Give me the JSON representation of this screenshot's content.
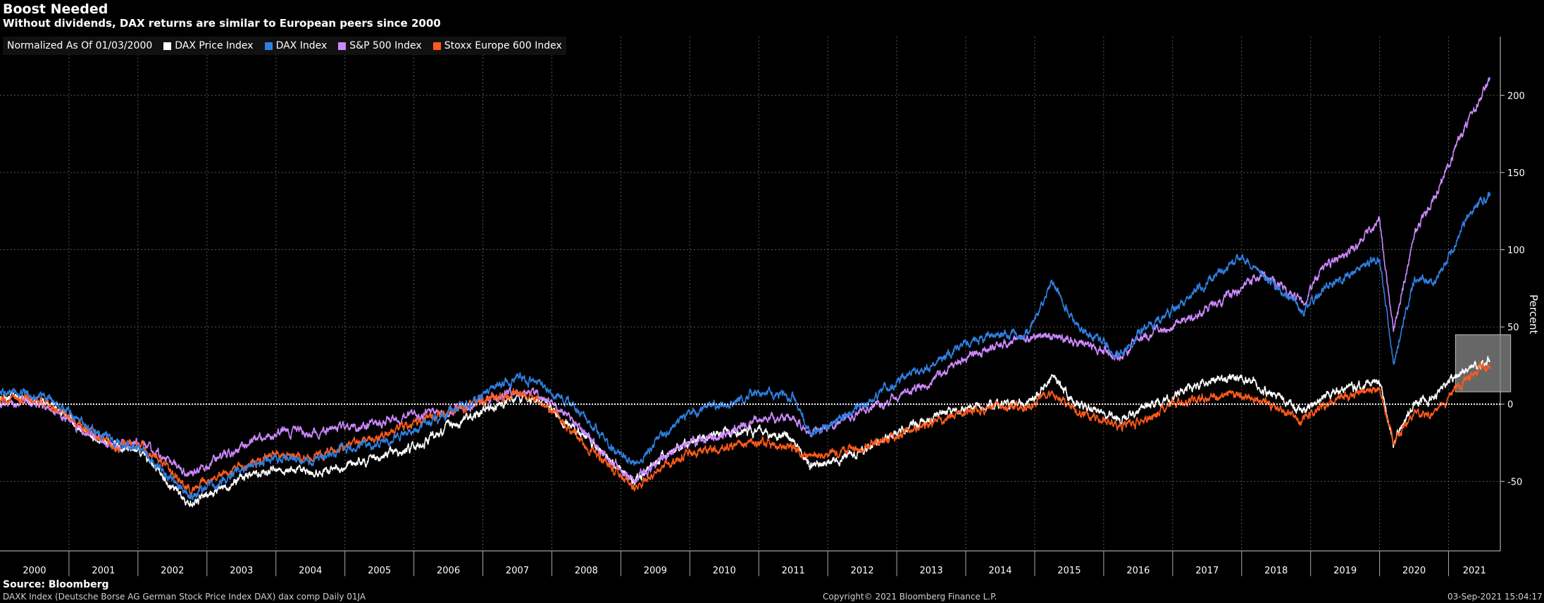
{
  "header": {
    "title": "Boost Needed",
    "subtitle": "Without dividends, DAX returns are similar to European peers since 2000"
  },
  "legend": {
    "prefix": "Normalized As Of 01/03/2000",
    "items": [
      {
        "label": "DAX Price Index",
        "color": "#ffffff"
      },
      {
        "label": "DAX Index",
        "color": "#2f7fe0"
      },
      {
        "label": "S&P 500 Index",
        "color": "#cc88ff"
      },
      {
        "label": "Stoxx Europe 600 Index",
        "color": "#ff5a1a"
      }
    ]
  },
  "footer": {
    "source": "Source: Bloomberg",
    "left": "DAXK Index (Deutsche Borse AG German Stock Price Index DAX) dax comp  Daily 01JA",
    "center": "Copyright© 2021 Bloomberg Finance L.P.",
    "right": "03-Sep-2021 15:04:17"
  },
  "chart_data": {
    "type": "line",
    "ylabel": "Percent",
    "ylim": [
      -95,
      238
    ],
    "xlim": [
      2000.0,
      2021.75
    ],
    "yticks": [
      -50,
      0,
      50,
      100,
      150,
      200
    ],
    "xticks": [
      "2000",
      "2001",
      "2002",
      "2003",
      "2004",
      "2005",
      "2006",
      "2007",
      "2008",
      "2009",
      "2010",
      "2011",
      "2012",
      "2013",
      "2014",
      "2015",
      "2016",
      "2017",
      "2018",
      "2019",
      "2020",
      "2021"
    ],
    "grid": true,
    "legend_position": "top-left",
    "series": [
      {
        "name": "DAX Price Index",
        "color": "#ffffff",
        "points": [
          [
            2000.0,
            5
          ],
          [
            2000.4,
            4
          ],
          [
            2000.8,
            -2
          ],
          [
            2001.3,
            -20
          ],
          [
            2001.7,
            -28
          ],
          [
            2002.0,
            -30
          ],
          [
            2002.4,
            -48
          ],
          [
            2002.75,
            -65
          ],
          [
            2003.2,
            -55
          ],
          [
            2003.6,
            -45
          ],
          [
            2004.0,
            -42
          ],
          [
            2004.5,
            -45
          ],
          [
            2005.0,
            -40
          ],
          [
            2005.5,
            -35
          ],
          [
            2006.0,
            -28
          ],
          [
            2006.5,
            -15
          ],
          [
            2007.0,
            -5
          ],
          [
            2007.5,
            5
          ],
          [
            2007.9,
            0
          ],
          [
            2008.3,
            -15
          ],
          [
            2008.7,
            -30
          ],
          [
            2009.2,
            -50
          ],
          [
            2009.6,
            -35
          ],
          [
            2010.0,
            -25
          ],
          [
            2010.5,
            -18
          ],
          [
            2011.0,
            -18
          ],
          [
            2011.5,
            -22
          ],
          [
            2011.75,
            -40
          ],
          [
            2012.0,
            -38
          ],
          [
            2012.5,
            -30
          ],
          [
            2013.0,
            -18
          ],
          [
            2013.5,
            -10
          ],
          [
            2014.0,
            -2
          ],
          [
            2014.5,
            0
          ],
          [
            2014.9,
            0
          ],
          [
            2015.25,
            18
          ],
          [
            2015.6,
            0
          ],
          [
            2016.0,
            -5
          ],
          [
            2016.2,
            -10
          ],
          [
            2016.5,
            -5
          ],
          [
            2017.0,
            5
          ],
          [
            2017.5,
            15
          ],
          [
            2018.0,
            18
          ],
          [
            2018.3,
            10
          ],
          [
            2018.9,
            -5
          ],
          [
            2019.2,
            5
          ],
          [
            2019.6,
            10
          ],
          [
            2020.0,
            15
          ],
          [
            2020.2,
            -25
          ],
          [
            2020.5,
            0
          ],
          [
            2020.8,
            5
          ],
          [
            2021.0,
            15
          ],
          [
            2021.3,
            22
          ],
          [
            2021.6,
            28
          ]
        ]
      },
      {
        "name": "DAX Index",
        "color": "#2f7fe0",
        "points": [
          [
            2000.0,
            8
          ],
          [
            2000.4,
            7
          ],
          [
            2000.8,
            2
          ],
          [
            2001.3,
            -15
          ],
          [
            2001.7,
            -25
          ],
          [
            2002.0,
            -28
          ],
          [
            2002.4,
            -45
          ],
          [
            2002.75,
            -60
          ],
          [
            2003.2,
            -50
          ],
          [
            2003.6,
            -40
          ],
          [
            2004.0,
            -35
          ],
          [
            2004.5,
            -38
          ],
          [
            2005.0,
            -30
          ],
          [
            2005.5,
            -25
          ],
          [
            2006.0,
            -18
          ],
          [
            2006.5,
            -5
          ],
          [
            2007.0,
            5
          ],
          [
            2007.5,
            18
          ],
          [
            2007.9,
            10
          ],
          [
            2008.3,
            0
          ],
          [
            2008.7,
            -20
          ],
          [
            2009.2,
            -40
          ],
          [
            2009.6,
            -20
          ],
          [
            2010.0,
            -5
          ],
          [
            2010.5,
            0
          ],
          [
            2011.0,
            8
          ],
          [
            2011.5,
            5
          ],
          [
            2011.75,
            -20
          ],
          [
            2012.0,
            -15
          ],
          [
            2012.5,
            0
          ],
          [
            2013.0,
            15
          ],
          [
            2013.5,
            25
          ],
          [
            2014.0,
            40
          ],
          [
            2014.5,
            45
          ],
          [
            2014.9,
            45
          ],
          [
            2015.25,
            80
          ],
          [
            2015.6,
            50
          ],
          [
            2016.0,
            40
          ],
          [
            2016.2,
            30
          ],
          [
            2016.5,
            45
          ],
          [
            2017.0,
            60
          ],
          [
            2017.5,
            80
          ],
          [
            2018.0,
            95
          ],
          [
            2018.3,
            85
          ],
          [
            2018.9,
            60
          ],
          [
            2019.2,
            75
          ],
          [
            2019.6,
            85
          ],
          [
            2020.0,
            95
          ],
          [
            2020.2,
            25
          ],
          [
            2020.5,
            80
          ],
          [
            2020.8,
            80
          ],
          [
            2021.0,
            95
          ],
          [
            2021.3,
            125
          ],
          [
            2021.6,
            135
          ]
        ]
      },
      {
        "name": "S&P 500 Index",
        "color": "#cc88ff",
        "points": [
          [
            2000.0,
            0
          ],
          [
            2000.4,
            2
          ],
          [
            2000.8,
            -5
          ],
          [
            2001.3,
            -20
          ],
          [
            2001.7,
            -28
          ],
          [
            2002.0,
            -25
          ],
          [
            2002.4,
            -35
          ],
          [
            2002.75,
            -45
          ],
          [
            2003.2,
            -35
          ],
          [
            2003.6,
            -25
          ],
          [
            2004.0,
            -18
          ],
          [
            2004.5,
            -18
          ],
          [
            2005.0,
            -15
          ],
          [
            2005.5,
            -12
          ],
          [
            2006.0,
            -8
          ],
          [
            2006.5,
            -5
          ],
          [
            2007.0,
            2
          ],
          [
            2007.5,
            8
          ],
          [
            2007.9,
            5
          ],
          [
            2008.3,
            -10
          ],
          [
            2008.7,
            -30
          ],
          [
            2009.2,
            -50
          ],
          [
            2009.6,
            -35
          ],
          [
            2010.0,
            -25
          ],
          [
            2010.5,
            -20
          ],
          [
            2011.0,
            -10
          ],
          [
            2011.5,
            -8
          ],
          [
            2011.75,
            -20
          ],
          [
            2012.0,
            -15
          ],
          [
            2012.5,
            -5
          ],
          [
            2013.0,
            5
          ],
          [
            2013.5,
            15
          ],
          [
            2014.0,
            30
          ],
          [
            2014.5,
            38
          ],
          [
            2014.9,
            42
          ],
          [
            2015.25,
            45
          ],
          [
            2015.6,
            40
          ],
          [
            2016.0,
            35
          ],
          [
            2016.2,
            30
          ],
          [
            2016.5,
            42
          ],
          [
            2017.0,
            50
          ],
          [
            2017.5,
            60
          ],
          [
            2018.0,
            75
          ],
          [
            2018.3,
            85
          ],
          [
            2018.9,
            65
          ],
          [
            2019.2,
            90
          ],
          [
            2019.6,
            100
          ],
          [
            2020.0,
            120
          ],
          [
            2020.2,
            45
          ],
          [
            2020.5,
            110
          ],
          [
            2020.8,
            135
          ],
          [
            2021.0,
            155
          ],
          [
            2021.3,
            185
          ],
          [
            2021.6,
            210
          ]
        ]
      },
      {
        "name": "Stoxx Europe 600 Index",
        "color": "#ff5a1a",
        "points": [
          [
            2000.0,
            2
          ],
          [
            2000.4,
            3
          ],
          [
            2000.8,
            -3
          ],
          [
            2001.3,
            -18
          ],
          [
            2001.7,
            -28
          ],
          [
            2002.0,
            -25
          ],
          [
            2002.4,
            -40
          ],
          [
            2002.75,
            -55
          ],
          [
            2003.2,
            -45
          ],
          [
            2003.6,
            -38
          ],
          [
            2004.0,
            -32
          ],
          [
            2004.5,
            -35
          ],
          [
            2005.0,
            -28
          ],
          [
            2005.5,
            -22
          ],
          [
            2006.0,
            -12
          ],
          [
            2006.5,
            -5
          ],
          [
            2007.0,
            2
          ],
          [
            2007.5,
            8
          ],
          [
            2007.9,
            0
          ],
          [
            2008.3,
            -18
          ],
          [
            2008.7,
            -35
          ],
          [
            2009.2,
            -55
          ],
          [
            2009.6,
            -40
          ],
          [
            2010.0,
            -32
          ],
          [
            2010.5,
            -28
          ],
          [
            2011.0,
            -25
          ],
          [
            2011.5,
            -28
          ],
          [
            2011.75,
            -35
          ],
          [
            2012.0,
            -32
          ],
          [
            2012.5,
            -28
          ],
          [
            2013.0,
            -20
          ],
          [
            2013.5,
            -12
          ],
          [
            2014.0,
            -5
          ],
          [
            2014.5,
            -2
          ],
          [
            2014.9,
            -3
          ],
          [
            2015.25,
            8
          ],
          [
            2015.6,
            -5
          ],
          [
            2016.0,
            -10
          ],
          [
            2016.2,
            -15
          ],
          [
            2016.5,
            -12
          ],
          [
            2017.0,
            0
          ],
          [
            2017.5,
            5
          ],
          [
            2018.0,
            5
          ],
          [
            2018.3,
            2
          ],
          [
            2018.9,
            -10
          ],
          [
            2019.2,
            0
          ],
          [
            2019.6,
            5
          ],
          [
            2020.0,
            12
          ],
          [
            2020.2,
            -25
          ],
          [
            2020.5,
            -5
          ],
          [
            2020.8,
            -8
          ],
          [
            2021.0,
            5
          ],
          [
            2021.3,
            18
          ],
          [
            2021.6,
            25
          ]
        ]
      }
    ],
    "annotations": [
      {
        "type": "highlight-box",
        "x0": 2021.1,
        "x1": 2021.9,
        "y0": 8,
        "y1": 45
      }
    ]
  }
}
